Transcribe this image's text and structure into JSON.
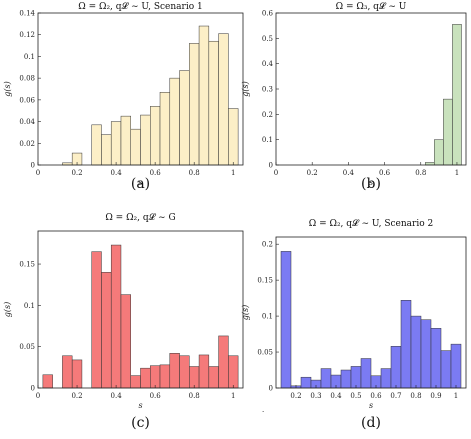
{
  "figure": {
    "dot": "."
  },
  "chart_data": [
    {
      "type": "bar",
      "title": "Ω = Ω₂, q𝓛 ∼ U, Scenario 1",
      "caption": "(a)",
      "xlabel": "s",
      "ylabel": "g(s)",
      "xlim": [
        0,
        1.05
      ],
      "ylim": [
        0,
        0.14
      ],
      "xticks": [
        "0",
        "0.2",
        "0.4",
        "0.6",
        "0.8",
        "1"
      ],
      "xtick_values": [
        0,
        0.2,
        0.4,
        0.6,
        0.8,
        1
      ],
      "yticks": [
        "0",
        "0.02",
        "0.04",
        "0.06",
        "0.08",
        "0.1",
        "0.12",
        "0.14"
      ],
      "ytick_values": [
        0,
        0.02,
        0.04,
        0.06,
        0.08,
        0.1,
        0.12,
        0.14
      ],
      "bin_width": 0.05,
      "x": [
        0.15,
        0.2,
        0.3,
        0.35,
        0.4,
        0.45,
        0.5,
        0.55,
        0.6,
        0.65,
        0.7,
        0.75,
        0.8,
        0.85,
        0.9,
        0.95,
        1.0
      ],
      "values": [
        0.002,
        0.011,
        0.037,
        0.028,
        0.04,
        0.045,
        0.033,
        0.046,
        0.054,
        0.067,
        0.08,
        0.087,
        0.112,
        0.128,
        0.114,
        0.121,
        0.052
      ],
      "color": "#fcefc7"
    },
    {
      "type": "bar",
      "title": "Ω = Ω₃, q𝓛 ∼ U",
      "caption": "(b)",
      "xlabel": "s",
      "ylabel": "g(s)",
      "xlim": [
        0,
        1.05
      ],
      "ylim": [
        0,
        0.6
      ],
      "xticks": [
        "0",
        "0.2",
        "0.4",
        "0.6",
        "0.8",
        "1"
      ],
      "xtick_values": [
        0,
        0.2,
        0.4,
        0.6,
        0.8,
        1
      ],
      "yticks": [
        "0",
        "0.1",
        "0.2",
        "0.3",
        "0.4",
        "0.5",
        "0.6"
      ],
      "ytick_values": [
        0,
        0.1,
        0.2,
        0.3,
        0.4,
        0.5,
        0.6
      ],
      "bin_width": 0.05,
      "x": [
        0.85,
        0.9,
        0.95,
        1.0
      ],
      "values": [
        0.01,
        0.1,
        0.26,
        0.555
      ],
      "color": "#c9e2bd"
    },
    {
      "type": "bar",
      "title": "Ω = Ω₂, q𝓛 ∼ G",
      "caption": "(c)",
      "xlabel": "s",
      "ylabel": "g(s)",
      "xlim": [
        0,
        1.05
      ],
      "ylim": [
        0,
        0.19
      ],
      "xticks": [
        "0",
        "0.2",
        "0.4",
        "0.6",
        "0.8",
        "1"
      ],
      "xtick_values": [
        0,
        0.2,
        0.4,
        0.6,
        0.8,
        1
      ],
      "yticks": [
        "0",
        "0.05",
        "0.1",
        "0.15"
      ],
      "ytick_values": [
        0,
        0.05,
        0.1,
        0.15
      ],
      "bin_width": 0.05,
      "x": [
        0.05,
        0.15,
        0.2,
        0.3,
        0.35,
        0.4,
        0.45,
        0.5,
        0.55,
        0.6,
        0.65,
        0.7,
        0.75,
        0.8,
        0.85,
        0.9,
        0.95,
        1.0
      ],
      "values": [
        0.016,
        0.039,
        0.034,
        0.165,
        0.14,
        0.173,
        0.113,
        0.015,
        0.024,
        0.027,
        0.028,
        0.042,
        0.039,
        0.026,
        0.04,
        0.026,
        0.063,
        0.039
      ],
      "color": "#f57a7a"
    },
    {
      "type": "bar",
      "title": "Ω = Ω₂, q𝓛 ∼ U, Scenario 2",
      "caption": "(d)",
      "xlabel": "s",
      "ylabel": "g(s)",
      "xlim": [
        0.1,
        1.05
      ],
      "ylim": [
        0,
        0.21
      ],
      "xticks": [
        "0.2",
        "0.3",
        "0.4",
        "0.5",
        "0.6",
        "0.7",
        "0.8",
        "0.9",
        "1"
      ],
      "xtick_values": [
        0.2,
        0.3,
        0.4,
        0.5,
        0.6,
        0.7,
        0.8,
        0.9,
        1
      ],
      "yticks": [
        "0",
        "0.05",
        "0.1",
        "0.15",
        "0.2"
      ],
      "ytick_values": [
        0,
        0.05,
        0.1,
        0.15,
        0.2
      ],
      "bin_width": 0.05,
      "x": [
        0.15,
        0.2,
        0.25,
        0.3,
        0.35,
        0.4,
        0.45,
        0.5,
        0.55,
        0.6,
        0.65,
        0.7,
        0.75,
        0.8,
        0.85,
        0.9,
        0.95,
        1.0
      ],
      "values": [
        0.19,
        0.003,
        0.015,
        0.011,
        0.027,
        0.018,
        0.025,
        0.03,
        0.041,
        0.017,
        0.027,
        0.058,
        0.122,
        0.1,
        0.095,
        0.083,
        0.052,
        0.061
      ],
      "color": "#7b7bf3"
    }
  ]
}
